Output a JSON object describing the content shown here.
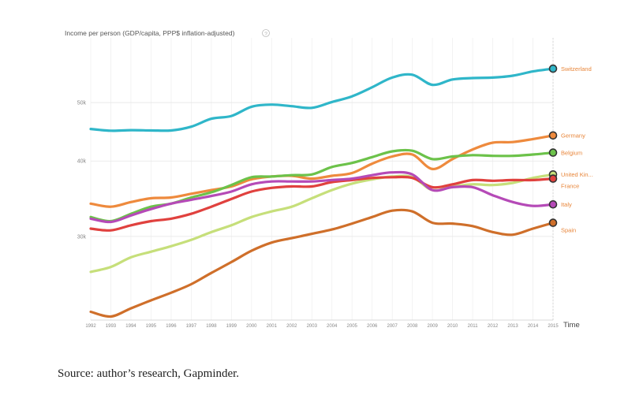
{
  "caption": "Source: author’s research, Gapminder.",
  "chart_data": {
    "type": "line",
    "title": "",
    "ylabel": "Income per person (GDP/capita, PPP$ inflation-adjusted)",
    "info_icon": "question-mark-circle-icon",
    "xlabel": "Time",
    "y_scale": "log",
    "ylim": [
      21800,
      64000
    ],
    "xlim": [
      1992,
      2015
    ],
    "y_ticks": [
      {
        "value": 30000,
        "label": "30k"
      },
      {
        "value": 40000,
        "label": "40k"
      },
      {
        "value": 50000,
        "label": "50k"
      }
    ],
    "x": [
      1992,
      1993,
      1994,
      1995,
      1996,
      1997,
      1998,
      1999,
      2000,
      2001,
      2002,
      2003,
      2004,
      2005,
      2006,
      2007,
      2008,
      2009,
      2010,
      2011,
      2012,
      2013,
      2014,
      2015
    ],
    "x_tick_labels": [
      "1992",
      "1993",
      "1994",
      "1995",
      "1996",
      "1997",
      "1998",
      "1999",
      "2000",
      "2001",
      "2002",
      "2003",
      "2004",
      "2005",
      "2006",
      "2007",
      "2008",
      "2009",
      "2010",
      "2011",
      "2012",
      "2013",
      "2014",
      "2015"
    ],
    "grid": true,
    "series": [
      {
        "name": "Switzerland",
        "color": "#2fb6c9",
        "values": [
          45200,
          44900,
          45000,
          44950,
          44950,
          45600,
          47000,
          47500,
          49200,
          49600,
          49300,
          49000,
          50100,
          51200,
          53000,
          55000,
          55600,
          53500,
          54600,
          54900,
          55000,
          55400,
          56300,
          56900
        ]
      },
      {
        "name": "Germany",
        "color": "#ee8a3d",
        "values": [
          34000,
          33600,
          34200,
          34700,
          34800,
          35300,
          35800,
          36300,
          37300,
          37700,
          37800,
          37400,
          37800,
          38200,
          39600,
          40700,
          41000,
          38800,
          40300,
          41800,
          42900,
          43000,
          43500,
          44100
        ]
      },
      {
        "name": "Belgium",
        "color": "#6cc24a",
        "values": [
          32300,
          31800,
          32700,
          33600,
          34000,
          34800,
          35500,
          36500,
          37600,
          37700,
          37900,
          38000,
          39100,
          39700,
          40600,
          41500,
          41600,
          40300,
          40700,
          40900,
          40800,
          40800,
          41000,
          41300
        ]
      },
      {
        "name": "United Kin...",
        "color": "#c6df7a",
        "values": [
          26200,
          26700,
          27700,
          28300,
          28900,
          29600,
          30500,
          31300,
          32300,
          33000,
          33600,
          34700,
          35800,
          36700,
          37300,
          37700,
          37600,
          35800,
          36300,
          36600,
          36500,
          36800,
          37500,
          38000
        ]
      },
      {
        "name": "France",
        "color": "#e0413e",
        "values": [
          30900,
          30700,
          31300,
          31800,
          32100,
          32700,
          33600,
          34600,
          35600,
          36100,
          36300,
          36300,
          36900,
          37200,
          37500,
          37600,
          37500,
          36200,
          36600,
          37200,
          37100,
          37200,
          37200,
          37400
        ]
      },
      {
        "name": "Italy",
        "color": "#b54ab7",
        "values": [
          32100,
          31700,
          32500,
          33300,
          34000,
          34500,
          35000,
          35600,
          36600,
          37000,
          37000,
          37000,
          37200,
          37400,
          37900,
          38300,
          38000,
          35800,
          36200,
          36200,
          35100,
          34200,
          33700,
          33900
        ]
      },
      {
        "name": "Spain",
        "color": "#cf6f2a",
        "values": [
          22500,
          22100,
          22800,
          23500,
          24200,
          25000,
          26100,
          27200,
          28400,
          29300,
          29800,
          30300,
          30800,
          31500,
          32300,
          33100,
          33000,
          31600,
          31500,
          31200,
          30500,
          30200,
          30900,
          31600
        ]
      }
    ]
  }
}
